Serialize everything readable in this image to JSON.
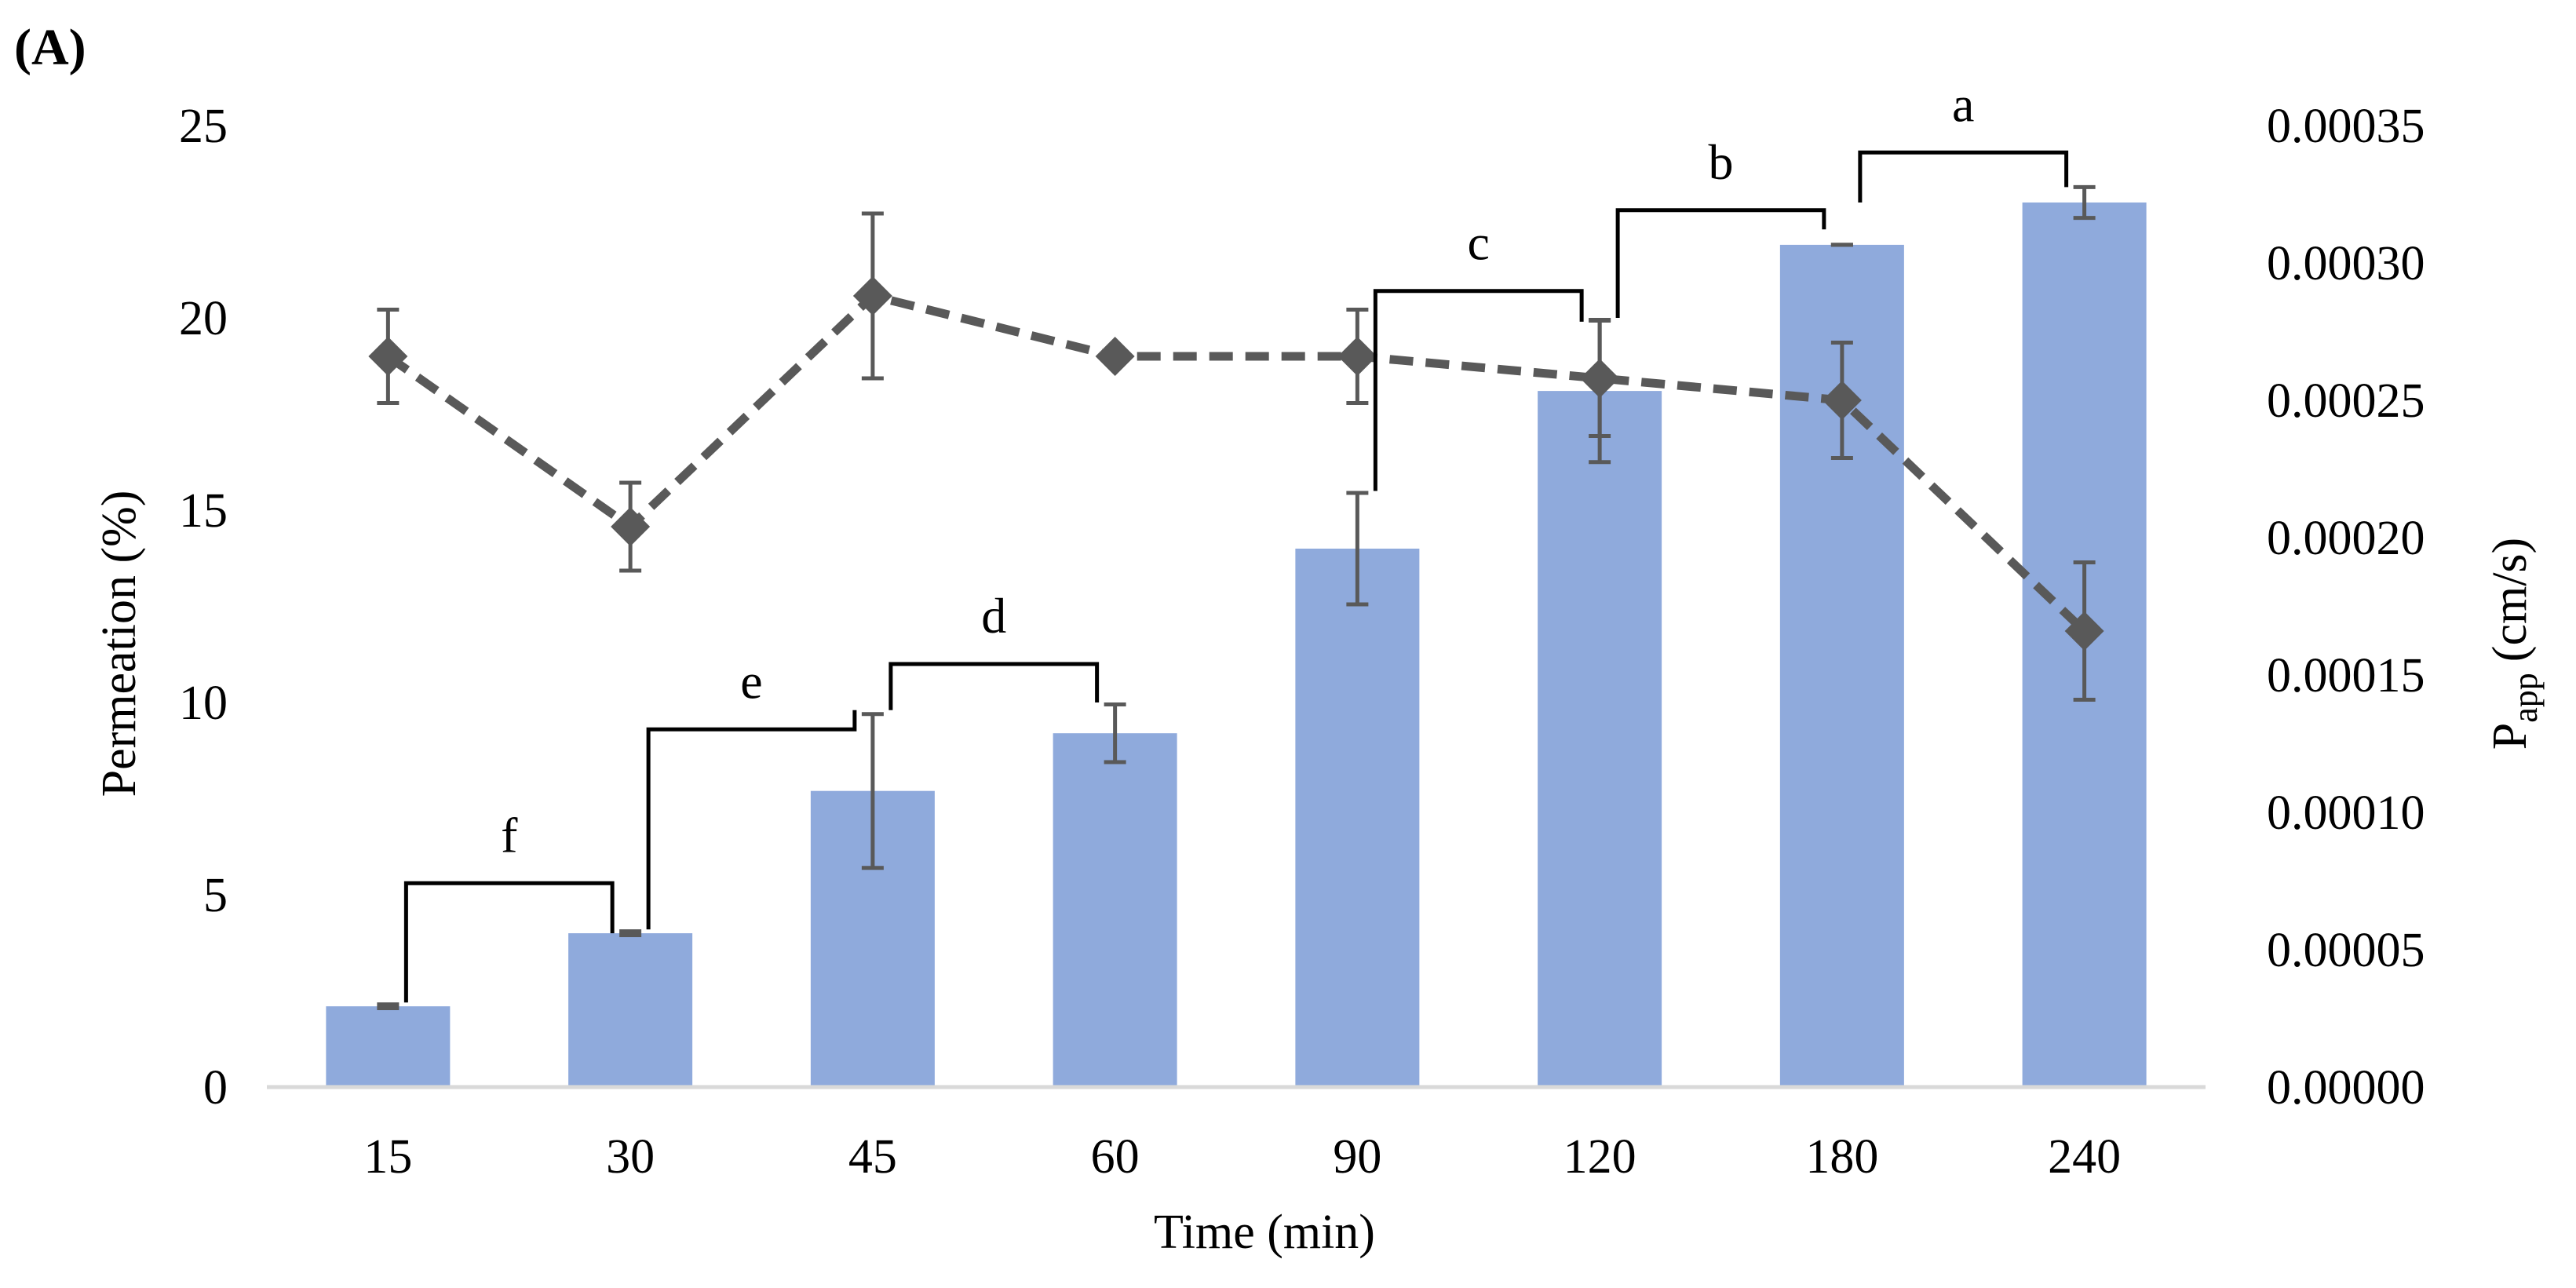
{
  "panel_label": "(A)",
  "colors": {
    "bar": "#8FAADC",
    "line": "#595959",
    "axis": "#D9D9D9",
    "text": "#000000"
  },
  "chart_data": {
    "type": "bar",
    "title": "",
    "xlabel": "Time (min)",
    "categories": [
      "15",
      "30",
      "45",
      "60",
      "90",
      "120",
      "180",
      "240"
    ],
    "y_left": {
      "label": "Permeation (%)",
      "range": [
        0,
        25
      ],
      "ticks": [
        "0",
        "5",
        "10",
        "15",
        "20",
        "25"
      ]
    },
    "y_right": {
      "label_main": "P",
      "label_sub": "app",
      "label_unit": "(cm/s)",
      "range": [
        0,
        0.00035
      ],
      "ticks": [
        "0.00000",
        "0.00005",
        "0.00010",
        "0.00015",
        "0.00020",
        "0.00025",
        "0.00030",
        "0.00035"
      ]
    },
    "series": [
      {
        "name": "Permeation (%)",
        "kind": "bar",
        "axis": "left",
        "values": [
          2.1,
          4.0,
          7.7,
          9.2,
          14.0,
          18.1,
          21.9,
          23.0
        ],
        "errors": [
          0.05,
          0.05,
          2.0,
          0.75,
          1.45,
          1.85,
          0.0,
          0.4
        ]
      },
      {
        "name": "Papp (cm/s)",
        "kind": "line",
        "axis": "right",
        "style": "dashed",
        "marker": "diamond",
        "values": [
          0.000266,
          0.000204,
          0.000288,
          0.000266,
          0.000266,
          0.000258,
          0.00025,
          0.000166
        ],
        "errors": [
          1.7e-05,
          1.6e-05,
          3e-05,
          0.0,
          1.7e-05,
          2.1e-05,
          2.1e-05,
          2.5e-05
        ]
      }
    ],
    "significance": [
      {
        "label": "f",
        "from": "15",
        "to": "30",
        "left_level": 2.2,
        "right_level": 4.0,
        "top": 5.3
      },
      {
        "label": "e",
        "from": "30",
        "to": "45",
        "left_level": 4.1,
        "right_level": 9.8,
        "top": 9.3
      },
      {
        "label": "d",
        "from": "45",
        "to": "60",
        "left_level": 9.8,
        "right_level": 10.0,
        "top": 11.0
      },
      {
        "label": "c",
        "from": "90",
        "to": "120",
        "left_level": 15.5,
        "right_level": 19.9,
        "top": 20.7
      },
      {
        "label": "b",
        "from": "120",
        "to": "180",
        "left_level": 20.0,
        "right_level": 22.3,
        "top": 22.8
      },
      {
        "label": "a",
        "from": "180",
        "to": "240",
        "left_level": 23.0,
        "right_level": 23.4,
        "top": 24.3
      }
    ]
  }
}
